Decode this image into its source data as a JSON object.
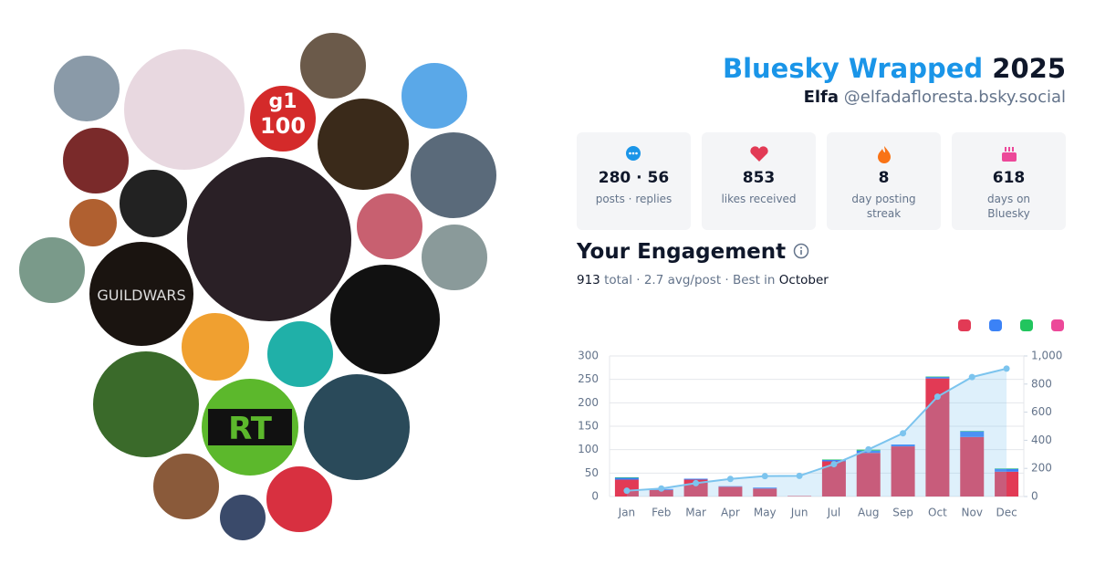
{
  "header": {
    "title": "Bluesky Wrapped",
    "year": "2025",
    "name": "Elfa",
    "handle": "@elfadafloresta.bsky.social"
  },
  "avatar_texts": [
    "g1",
    "100",
    "GUILDWARS",
    "RT"
  ],
  "stats": [
    {
      "value": "280 · 56",
      "label": "posts · replies"
    },
    {
      "value": "853",
      "label": "likes received"
    },
    {
      "value": "8",
      "label": "day posting streak"
    },
    {
      "value": "618",
      "label": "days on Bluesky"
    }
  ],
  "engagement": {
    "heading": "Your Engagement",
    "total": "913",
    "summary": "total · 2.7 avg/post · Best in",
    "best_month": "October"
  },
  "chart_data": {
    "type": "bar",
    "categories": [
      "Jan",
      "Feb",
      "Mar",
      "Apr",
      "May",
      "Jun",
      "Jul",
      "Aug",
      "Sep",
      "Oct",
      "Nov",
      "Dec"
    ],
    "series": [
      {
        "color": "#e23a55",
        "values": [
          36,
          14,
          36,
          21,
          17,
          1,
          75,
          93,
          107,
          252,
          127,
          53
        ]
      },
      {
        "color": "#3b82f6",
        "values": [
          4,
          2,
          2,
          1,
          2,
          0,
          3,
          5,
          4,
          3,
          12,
          6
        ]
      },
      {
        "color": "#22c55e",
        "values": [
          1,
          0,
          0,
          0,
          0,
          0,
          1,
          2,
          0,
          1,
          1,
          1
        ]
      },
      {
        "color": "#ec4899",
        "values": [
          0,
          0,
          0,
          0,
          0,
          0,
          0,
          0,
          0,
          0,
          0,
          0
        ]
      },
      {
        "type": "line",
        "axis": "y2",
        "color": "#7cc4ee",
        "values": [
          41,
          57,
          95,
          125,
          145,
          147,
          230,
          335,
          450,
          710,
          850,
          910
        ]
      }
    ],
    "ylim": [
      0,
      300
    ],
    "yticks": [
      0,
      50,
      100,
      150,
      200,
      250,
      300
    ],
    "y2lim": [
      0,
      1000
    ],
    "y2ticks": [
      0,
      200,
      400,
      600,
      800,
      {
        "value": 1000,
        "label": "1,000"
      }
    ],
    "grid": true
  }
}
